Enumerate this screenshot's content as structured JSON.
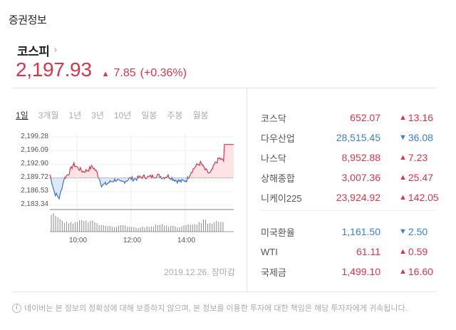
{
  "section_title": "증권정보",
  "index": {
    "name": "코스피",
    "chevron": "›",
    "price": "2,197.93",
    "direction": "up",
    "change": "7.85",
    "change_pct": "(+0.36%)"
  },
  "period_tabs": [
    {
      "label": "1일",
      "active": true
    },
    {
      "label": "3개월",
      "active": false
    },
    {
      "label": "1년",
      "active": false
    },
    {
      "label": "3년",
      "active": false
    },
    {
      "label": "10년",
      "active": false
    },
    {
      "label": "일봉",
      "active": false
    },
    {
      "label": "주봉",
      "active": false
    },
    {
      "label": "월봉",
      "active": false
    }
  ],
  "chart": {
    "date_label": "2019.12.26. 장마감",
    "y_ticks": [
      "2,199.28",
      "2,196.09",
      "2,192.90",
      "2,189.72",
      "2,186.53",
      "2,183.34"
    ],
    "x_ticks": [
      "10:00",
      "12:00",
      "14:00"
    ],
    "baseline": "2,189.72",
    "colors": {
      "up": "#d9364c",
      "down": "#3b6fd4",
      "up_fill": "#fde3e6",
      "down_fill": "#dde8f8"
    }
  },
  "chart_data": {
    "type": "line",
    "title": "코스피 1일",
    "xlabel": "",
    "ylabel": "",
    "ylim": [
      2183.34,
      2199.28
    ],
    "baseline": 2189.72,
    "x_ticks": [
      "10:00",
      "12:00",
      "14:00"
    ],
    "y_ticks": [
      2199.28,
      2196.09,
      2192.9,
      2189.72,
      2186.53,
      2183.34
    ],
    "x": [
      "09:00",
      "09:10",
      "09:20",
      "09:30",
      "09:40",
      "09:50",
      "10:00",
      "10:10",
      "10:20",
      "10:30",
      "10:40",
      "10:50",
      "11:00",
      "11:10",
      "11:20",
      "11:30",
      "11:40",
      "11:50",
      "12:00",
      "12:10",
      "12:20",
      "12:30",
      "12:40",
      "12:50",
      "13:00",
      "13:10",
      "13:20",
      "13:30",
      "13:40",
      "13:50",
      "14:00",
      "14:10",
      "14:20",
      "14:30",
      "14:40",
      "14:50",
      "15:00",
      "15:10",
      "15:20",
      "15:30"
    ],
    "values": [
      2190.5,
      2186.2,
      2185.0,
      2189.5,
      2190.8,
      2192.9,
      2192.0,
      2191.2,
      2191.5,
      2192.4,
      2191.0,
      2188.0,
      2188.3,
      2188.9,
      2189.3,
      2188.6,
      2189.0,
      2189.6,
      2189.4,
      2189.8,
      2190.0,
      2189.9,
      2190.1,
      2190.3,
      2189.8,
      2190.2,
      2189.6,
      2189.0,
      2188.9,
      2189.2,
      2191.2,
      2192.5,
      2193.2,
      2191.5,
      2190.6,
      2193.0,
      2194.3,
      2193.5,
      2193.8,
      2197.5
    ],
    "volume_relative": [
      1.0,
      0.9,
      0.6,
      0.55,
      0.5,
      0.48,
      0.55,
      0.6,
      0.55,
      0.62,
      0.45,
      0.4,
      0.35,
      0.3,
      0.28,
      0.3,
      0.35,
      0.3,
      0.28,
      0.25,
      0.22,
      0.25,
      0.28,
      0.3,
      0.35,
      0.4,
      0.3,
      0.28,
      0.3,
      0.25,
      0.32,
      0.35,
      0.4,
      0.42,
      0.45,
      0.6,
      0.45,
      0.48,
      0.5,
      0.55
    ]
  },
  "markets_group1": [
    {
      "name": "코스닥",
      "value": "652.07",
      "direction": "up",
      "change": "13.16"
    },
    {
      "name": "다우산업",
      "value": "28,515.45",
      "direction": "down",
      "change": "36.08"
    },
    {
      "name": "나스닥",
      "value": "8,952.88",
      "direction": "up",
      "change": "7.23"
    },
    {
      "name": "상해종합",
      "value": "3,007.36",
      "direction": "up",
      "change": "25.47"
    },
    {
      "name": "니케이225",
      "value": "23,924.92",
      "direction": "up",
      "change": "142.05"
    }
  ],
  "markets_group2": [
    {
      "name": "미국환율",
      "value": "1,161.50",
      "direction": "down",
      "change": "2.50"
    },
    {
      "name": "WTI",
      "value": "61.11",
      "direction": "up",
      "change": "0.59"
    },
    {
      "name": "국제금",
      "value": "1,499.10",
      "direction": "up",
      "change": "16.60"
    }
  ],
  "icons": {
    "up": "▲",
    "down": "▼",
    "info": "i"
  },
  "disclaimer": "네이버는 본 정보의 정확성에 대해 보증하지 않으며, 본 정보를 이용한 투자에 대한 책임은 해당 투자자에게 귀속됩니다."
}
